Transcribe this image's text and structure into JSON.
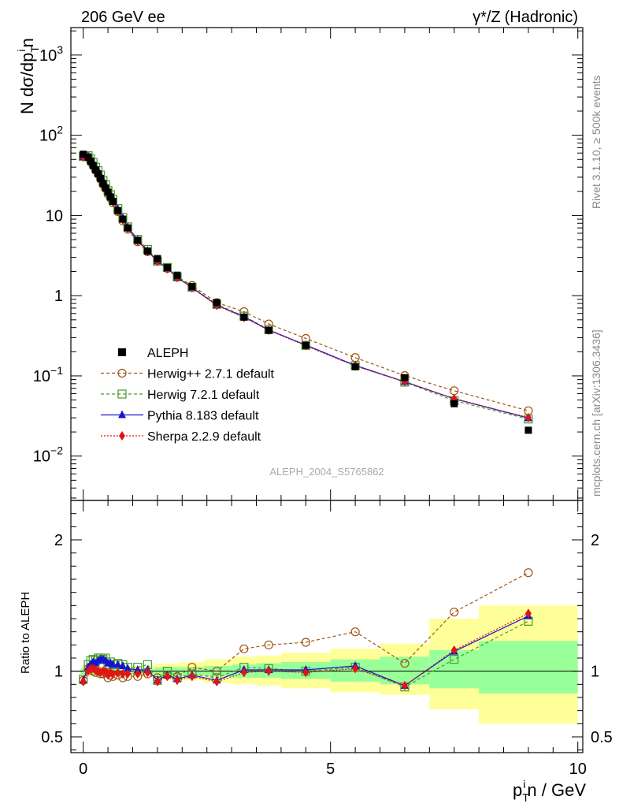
{
  "header": {
    "left": "206 GeV ee",
    "right_sym": "γ*/Z",
    "right_text": "(Hadronic)"
  },
  "side": {
    "rivet": "Rivet 3.1.10, ≥ 500k events",
    "mcplots": "mcplots.cern.ch [arXiv:1306.3436]"
  },
  "watermark": "ALEPH_2004_S5765862",
  "axes": {
    "ylabel_main": "N dσ/dp",
    "ylabel_main_sub": "T",
    "ylabel_main_sup": "i",
    "ylabel_main_tail": "n",
    "ylabel_ratio": "Ratio to ALEPH",
    "xlabel_main": "p",
    "xlabel_sub": "T",
    "xlabel_sup": "i",
    "xlabel_tail": "n / GeV"
  },
  "chart_data": {
    "type": "line",
    "title": "206 GeV ee  γ*/Z (Hadronic)",
    "xlabel": "p_T^i n / GeV",
    "ylabel": "N dσ/dp_T^i n",
    "xlim": [
      -0.25,
      10.1
    ],
    "ylim": [
      0.0028,
      2200
    ],
    "yscale": "log",
    "ratio_ylim": [
      0.38,
      2.3
    ],
    "xticks": [
      0,
      5,
      10
    ],
    "yticks_main": [
      {
        "value": 0.01,
        "base": "10",
        "exp": "−2"
      },
      {
        "value": 0.1,
        "base": "10",
        "exp": "−1"
      },
      {
        "value": 1,
        "base": "1",
        "exp": ""
      },
      {
        "value": 10,
        "base": "10",
        "exp": ""
      },
      {
        "value": 100,
        "base": "10",
        "exp": "2"
      },
      {
        "value": 1000,
        "base": "10",
        "exp": "3"
      }
    ],
    "yticks_ratio": [
      {
        "value": 0.5,
        "label": "0.5"
      },
      {
        "value": 1,
        "label": "1"
      },
      {
        "value": 2,
        "label": "2"
      }
    ],
    "x": [
      0.0,
      0.1,
      0.15,
      0.2,
      0.25,
      0.3,
      0.35,
      0.4,
      0.45,
      0.5,
      0.55,
      0.6,
      0.7,
      0.8,
      0.9,
      1.1,
      1.3,
      1.5,
      1.7,
      1.9,
      2.2,
      2.7,
      3.25,
      3.75,
      4.5,
      5.5,
      6.5,
      7.5,
      9.0
    ],
    "data": {
      "name": "ALEPH",
      "values": [
        58,
        53,
        47,
        42,
        37,
        33,
        29,
        25,
        22,
        19.5,
        17,
        15,
        11.5,
        9.0,
        7.0,
        4.9,
        3.6,
        2.9,
        2.25,
        1.8,
        1.3,
        0.82,
        0.54,
        0.37,
        0.24,
        0.13,
        0.095,
        0.045,
        0.021
      ]
    },
    "bands": [
      {
        "x0": -0.05,
        "x1": 1.45,
        "inner": [
          0.98,
          1.02
        ],
        "outer": [
          0.96,
          1.04
        ]
      },
      {
        "x0": 1.45,
        "x1": 1.95,
        "inner": [
          0.97,
          1.03
        ],
        "outer": [
          0.94,
          1.06
        ]
      },
      {
        "x0": 1.95,
        "x1": 2.45,
        "inner": [
          0.97,
          1.03
        ],
        "outer": [
          0.93,
          1.07
        ]
      },
      {
        "x0": 2.45,
        "x1": 3.0,
        "inner": [
          0.96,
          1.04
        ],
        "outer": [
          0.91,
          1.09
        ]
      },
      {
        "x0": 3.0,
        "x1": 3.5,
        "inner": [
          0.95,
          1.05
        ],
        "outer": [
          0.9,
          1.11
        ]
      },
      {
        "x0": 3.5,
        "x1": 4.0,
        "inner": [
          0.95,
          1.06
        ],
        "outer": [
          0.89,
          1.12
        ]
      },
      {
        "x0": 4.0,
        "x1": 5.0,
        "inner": [
          0.94,
          1.07
        ],
        "outer": [
          0.87,
          1.14
        ]
      },
      {
        "x0": 5.0,
        "x1": 6.0,
        "inner": [
          0.92,
          1.09
        ],
        "outer": [
          0.84,
          1.17
        ]
      },
      {
        "x0": 6.0,
        "x1": 7.0,
        "inner": [
          0.9,
          1.11
        ],
        "outer": [
          0.82,
          1.21
        ]
      },
      {
        "x0": 7.0,
        "x1": 8.0,
        "inner": [
          0.87,
          1.16
        ],
        "outer": [
          0.71,
          1.4
        ]
      },
      {
        "x0": 8.0,
        "x1": 10.0,
        "inner": [
          0.83,
          1.23
        ],
        "outer": [
          0.6,
          1.5
        ]
      }
    ],
    "series": [
      {
        "name": "Herwig++ 2.7.1 default",
        "color": "#a0520f",
        "dash": "4,3",
        "marker": "circle-open",
        "ratio": [
          0.93,
          1.02,
          1.03,
          1.0,
          0.99,
          1.0,
          0.98,
          0.98,
          0.99,
          0.95,
          0.97,
          0.96,
          0.97,
          0.95,
          0.96,
          0.96,
          0.98,
          0.95,
          0.97,
          0.96,
          1.03,
          1.0,
          1.17,
          1.2,
          1.22,
          1.3,
          1.06,
          1.45,
          1.75
        ]
      },
      {
        "name": "Herwig 7.2.1 default",
        "color": "#4a9a2a",
        "dash": "4,3",
        "marker": "square-open",
        "ratio": [
          0.94,
          1.05,
          1.08,
          1.09,
          1.08,
          1.1,
          1.1,
          1.09,
          1.1,
          1.05,
          1.07,
          1.05,
          1.06,
          1.05,
          1.03,
          1.03,
          1.05,
          0.93,
          1.0,
          0.95,
          0.98,
          0.95,
          1.03,
          1.02,
          1.0,
          1.03,
          0.88,
          1.09,
          1.38
        ]
      },
      {
        "name": "Pythia 8.183 default",
        "color": "#1515d0",
        "dash": "",
        "marker": "triangle",
        "ratio": [
          0.93,
          1.03,
          1.05,
          1.07,
          1.06,
          1.08,
          1.09,
          1.09,
          1.08,
          1.06,
          1.06,
          1.05,
          1.05,
          1.04,
          1.02,
          1.01,
          1.01,
          0.93,
          0.97,
          0.94,
          0.97,
          0.93,
          1.01,
          1.01,
          1.01,
          1.04,
          0.89,
          1.15,
          1.42
        ]
      },
      {
        "name": "Sherpa 2.2.9 default",
        "color": "#e01515",
        "dash": "2,2",
        "marker": "diamond",
        "ratio": [
          0.92,
          1.0,
          1.02,
          1.02,
          1.01,
          1.0,
          0.99,
          1.0,
          1.0,
          0.97,
          0.99,
          0.98,
          0.99,
          0.98,
          0.98,
          0.98,
          0.99,
          0.92,
          0.96,
          0.93,
          0.96,
          0.92,
          0.99,
          1.0,
          0.99,
          1.02,
          0.89,
          1.16,
          1.44
        ]
      }
    ]
  }
}
